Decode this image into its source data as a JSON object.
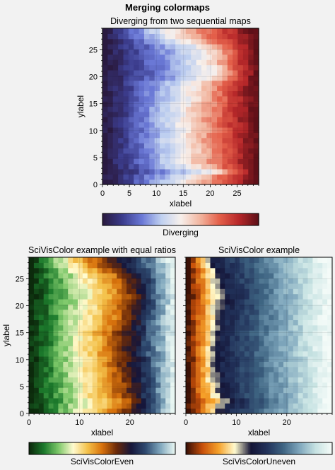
{
  "figure": {
    "title": "Merging colormaps"
  },
  "chart_data": [
    {
      "type": "heatmap",
      "title": "Diverging from two sequential maps",
      "xlabel": "xlabel",
      "ylabel": "ylabel",
      "xlim": [
        0,
        29
      ],
      "ylim": [
        0,
        29
      ],
      "xticks": [
        0,
        5,
        10,
        15,
        20,
        25
      ],
      "yticks": [
        0,
        5,
        10,
        15,
        20,
        25
      ],
      "colormap": {
        "name": "Diverging",
        "colors": [
          "#2a1a40",
          "#3b3c8c",
          "#6a78d6",
          "#bfd0f0",
          "#f7f0ec",
          "#f2b6a0",
          "#e4604a",
          "#b8282a",
          "#5e1018"
        ]
      },
      "colorbar_label": "Diverging",
      "boundary_x_by_row": [
        {
          "y": 0,
          "x": 15.5
        },
        {
          "y": 1,
          "x": 16.5
        },
        {
          "y": 2,
          "x": 21.0
        },
        {
          "y": 3,
          "x": 17.0
        },
        {
          "y": 4,
          "x": 15.0
        },
        {
          "y": 5,
          "x": 15.5
        },
        {
          "y": 6,
          "x": 16.0
        },
        {
          "y": 7,
          "x": 15.0
        },
        {
          "y": 8,
          "x": 14.5
        },
        {
          "y": 9,
          "x": 15.0
        },
        {
          "y": 10,
          "x": 15.5
        },
        {
          "y": 11,
          "x": 15.0
        },
        {
          "y": 12,
          "x": 14.5
        },
        {
          "y": 13,
          "x": 15.5
        },
        {
          "y": 14,
          "x": 15.0
        },
        {
          "y": 15,
          "x": 16.0
        },
        {
          "y": 16,
          "x": 16.5
        },
        {
          "y": 17,
          "x": 16.0
        },
        {
          "y": 18,
          "x": 16.5
        },
        {
          "y": 19,
          "x": 17.0
        },
        {
          "y": 20,
          "x": 20.0
        },
        {
          "y": 21,
          "x": 21.0
        },
        {
          "y": 22,
          "x": 20.5
        },
        {
          "y": 23,
          "x": 19.5
        },
        {
          "y": 24,
          "x": 20.0
        },
        {
          "y": 25,
          "x": 19.5
        },
        {
          "y": 26,
          "x": 18.5
        },
        {
          "y": 27,
          "x": 15.5
        },
        {
          "y": 28,
          "x": 13.0
        },
        {
          "y": 29,
          "x": 12.0
        }
      ]
    },
    {
      "type": "heatmap",
      "title": "SciVisColor example with equal ratios",
      "xlabel": "xlabel",
      "ylabel": "ylabel",
      "xlim": [
        0,
        29
      ],
      "ylim": [
        0,
        29
      ],
      "xticks": [
        0,
        10,
        20
      ],
      "yticks": [
        0,
        5,
        10,
        15,
        20,
        25
      ],
      "colormap": {
        "name": "SciVisColorEven",
        "colors": [
          "#0c2a0c",
          "#1c7a2c",
          "#7ec86a",
          "#fffbd0",
          "#f4c14a",
          "#d8720c",
          "#6a2a0a",
          "#16163a",
          "#2e4a70",
          "#7ea6bc",
          "#e8f6f2"
        ]
      },
      "colorbar_label": "SciVisColorEven",
      "boundary_x_by_row": [
        {
          "y": 0,
          "x": 17.5
        },
        {
          "y": 1,
          "x": 18.5
        },
        {
          "y": 2,
          "x": 19.5
        },
        {
          "y": 3,
          "x": 17.5
        },
        {
          "y": 4,
          "x": 17.0
        },
        {
          "y": 5,
          "x": 17.5
        },
        {
          "y": 6,
          "x": 17.0
        },
        {
          "y": 7,
          "x": 16.5
        },
        {
          "y": 8,
          "x": 16.5
        },
        {
          "y": 9,
          "x": 16.0
        },
        {
          "y": 10,
          "x": 16.5
        },
        {
          "y": 11,
          "x": 16.0
        },
        {
          "y": 12,
          "x": 15.5
        },
        {
          "y": 13,
          "x": 16.0
        },
        {
          "y": 14,
          "x": 16.5
        },
        {
          "y": 15,
          "x": 16.0
        },
        {
          "y": 16,
          "x": 16.5
        },
        {
          "y": 17,
          "x": 17.0
        },
        {
          "y": 18,
          "x": 17.5
        },
        {
          "y": 19,
          "x": 17.5
        },
        {
          "y": 20,
          "x": 18.0
        },
        {
          "y": 21,
          "x": 18.5
        },
        {
          "y": 22,
          "x": 19.0
        },
        {
          "y": 23,
          "x": 18.5
        },
        {
          "y": 24,
          "x": 18.0
        },
        {
          "y": 25,
          "x": 17.5
        },
        {
          "y": 26,
          "x": 17.0
        },
        {
          "y": 27,
          "x": 15.0
        },
        {
          "y": 28,
          "x": 13.0
        },
        {
          "y": 29,
          "x": 12.0
        }
      ]
    },
    {
      "type": "heatmap",
      "title": "SciVisColor example",
      "xlabel": "xlabel",
      "xlim": [
        0,
        29
      ],
      "ylim": [
        0,
        29
      ],
      "xticks": [
        0,
        10,
        20
      ],
      "colormap": {
        "name": "SciVisColorUneven",
        "colors": [
          "#3a1006",
          "#c8500a",
          "#f6a22a",
          "#fffbd0",
          "#141436",
          "#22325a",
          "#3e6482",
          "#7ea6bc",
          "#c6e2e2",
          "#f4fbf8"
        ]
      },
      "colorbar_label": "SciVisColorUneven",
      "boundary_x_by_row": [
        {
          "y": 0,
          "x": 7.5
        },
        {
          "y": 1,
          "x": 8.5
        },
        {
          "y": 2,
          "x": 10.0
        },
        {
          "y": 3,
          "x": 8.0
        },
        {
          "y": 4,
          "x": 7.5
        },
        {
          "y": 5,
          "x": 7.5
        },
        {
          "y": 6,
          "x": 7.0
        },
        {
          "y": 7,
          "x": 7.0
        },
        {
          "y": 8,
          "x": 7.0
        },
        {
          "y": 9,
          "x": 6.5
        },
        {
          "y": 10,
          "x": 7.0
        },
        {
          "y": 11,
          "x": 7.0
        },
        {
          "y": 12,
          "x": 6.5
        },
        {
          "y": 13,
          "x": 7.0
        },
        {
          "y": 14,
          "x": 7.0
        },
        {
          "y": 15,
          "x": 7.0
        },
        {
          "y": 16,
          "x": 7.5
        },
        {
          "y": 17,
          "x": 7.5
        },
        {
          "y": 18,
          "x": 7.5
        },
        {
          "y": 19,
          "x": 8.0
        },
        {
          "y": 20,
          "x": 8.0
        },
        {
          "y": 21,
          "x": 8.5
        },
        {
          "y": 22,
          "x": 8.5
        },
        {
          "y": 23,
          "x": 8.0
        },
        {
          "y": 24,
          "x": 8.0
        },
        {
          "y": 25,
          "x": 7.5
        },
        {
          "y": 26,
          "x": 7.5
        },
        {
          "y": 27,
          "x": 7.0
        },
        {
          "y": 28,
          "x": 6.0
        },
        {
          "y": 29,
          "x": 5.5
        }
      ]
    }
  ]
}
